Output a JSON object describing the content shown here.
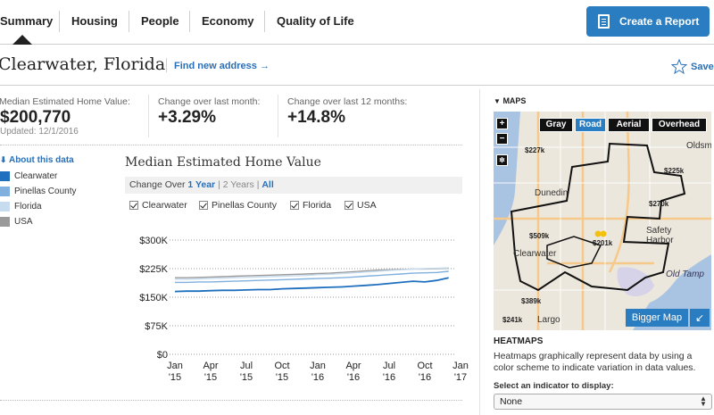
{
  "nav": {
    "tabs": [
      "Summary",
      "Housing",
      "People",
      "Economy",
      "Quality of Life"
    ],
    "active_tab": "Summary",
    "report_button": "Create a Report"
  },
  "location": {
    "city": "Clearwater, Florida",
    "find_address": "Find new address →",
    "save": "Save"
  },
  "stats": {
    "median_label": "Median Estimated Home Value:",
    "median_value": "$200,770",
    "updated": "Updated: 12/1/2016",
    "month_label": "Change over last month:",
    "month_value": "+3.29%",
    "year_label": "Change over last 12 months:",
    "year_value": "+14.8%"
  },
  "legend": {
    "about": "About this data",
    "items": [
      {
        "label": "Clearwater",
        "color": "#1f6fbf"
      },
      {
        "label": "Pinellas County",
        "color": "#7fb0de"
      },
      {
        "label": "Florida",
        "color": "#c7dcef"
      },
      {
        "label": "USA",
        "color": "#9a9a9a"
      }
    ]
  },
  "chart": {
    "title": "Median Estimated Home Value",
    "change_over": "Change Over",
    "range_1y": "1 Year",
    "range_2y": "2 Years",
    "range_all": "All",
    "checkboxes": [
      "Clearwater",
      "Pinellas County",
      "Florida",
      "USA"
    ]
  },
  "chart_data": {
    "type": "line",
    "title": "Median Estimated Home Value",
    "y_ticks": [
      "$300K",
      "$225K",
      "$150K",
      "$75K",
      "$0"
    ],
    "ylim": [
      0,
      300000
    ],
    "x_ticks": [
      {
        "month": "Jan",
        "year": "'15"
      },
      {
        "month": "Apr",
        "year": "'15"
      },
      {
        "month": "Jul",
        "year": "'15"
      },
      {
        "month": "Oct",
        "year": "'15"
      },
      {
        "month": "Jan",
        "year": "'16"
      },
      {
        "month": "Apr",
        "year": "'16"
      },
      {
        "month": "Jul",
        "year": "'16"
      },
      {
        "month": "Oct",
        "year": "'16"
      },
      {
        "month": "Jan",
        "year": "'17"
      }
    ],
    "x": [
      "2015-01",
      "2015-02",
      "2015-03",
      "2015-04",
      "2015-05",
      "2015-06",
      "2015-07",
      "2015-08",
      "2015-09",
      "2015-10",
      "2015-11",
      "2015-12",
      "2016-01",
      "2016-02",
      "2016-03",
      "2016-04",
      "2016-05",
      "2016-06",
      "2016-07",
      "2016-08",
      "2016-09",
      "2016-10",
      "2016-11",
      "2016-12"
    ],
    "series": [
      {
        "name": "Clearwater",
        "color": "#1f6fbf",
        "values": [
          165000,
          166000,
          166000,
          167000,
          168000,
          168000,
          169000,
          170000,
          170000,
          172000,
          173000,
          174000,
          175000,
          176000,
          177000,
          179000,
          181000,
          183000,
          186000,
          189000,
          192000,
          190000,
          194000,
          201000
        ]
      },
      {
        "name": "Pinellas County",
        "color": "#7fb0de",
        "values": [
          189000,
          189000,
          190000,
          190000,
          191000,
          192000,
          193000,
          194000,
          195000,
          196000,
          197000,
          198000,
          199000,
          200000,
          201000,
          203000,
          205000,
          207000,
          209000,
          211000,
          213000,
          214000,
          215000,
          218000
        ]
      },
      {
        "name": "Florida",
        "color": "#c7dcef",
        "values": [
          197000,
          197000,
          198000,
          199000,
          200000,
          201000,
          202000,
          203000,
          204000,
          205000,
          206000,
          207000,
          209000,
          210000,
          212000,
          214000,
          216000,
          218000,
          220000,
          222000,
          224000,
          225000,
          226000,
          227000
        ]
      },
      {
        "name": "USA",
        "color": "#9a9a9a",
        "values": [
          201000,
          201000,
          202000,
          203000,
          204000,
          205000,
          206000,
          207000,
          208000,
          209000,
          210000,
          211000,
          212000,
          213000,
          215000,
          217000,
          219000,
          221000,
          222000,
          223000,
          224000,
          224000,
          225000,
          226000
        ]
      }
    ]
  },
  "maps": {
    "heading": "MAPS",
    "buttons": [
      "Gray",
      "Road",
      "Aerial",
      "Overhead"
    ],
    "active_button": "Road",
    "places": [
      "Dunedin",
      "Clearwater",
      "Safety Harbor",
      "Old Tamp",
      "Largo",
      "Oldsma"
    ],
    "prices": [
      "$227k",
      "$225k",
      "$270k",
      "$509k",
      "$201k",
      "$389k",
      "$241k"
    ],
    "bigger_map": "Bigger Map",
    "heatmaps_title": "HEATMAPS",
    "heatmaps_desc": "Heatmaps graphically represent data by using a color scheme to indicate variation in data values.",
    "indicator_label": "Select an indicator to display:",
    "indicator_value": "None"
  }
}
